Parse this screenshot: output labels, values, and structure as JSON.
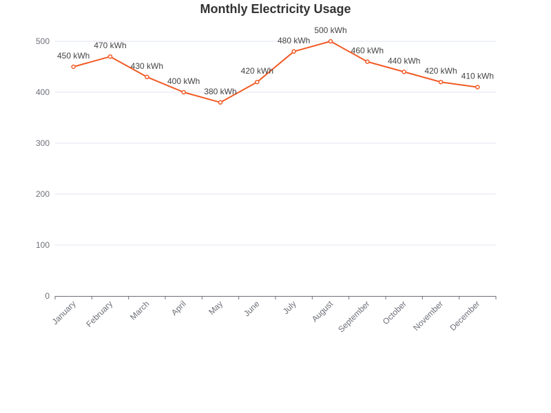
{
  "chart_data": {
    "type": "line",
    "title": "Monthly Electricity Usage",
    "xlabel": "",
    "ylabel": "",
    "categories": [
      "January",
      "February",
      "March",
      "April",
      "May",
      "June",
      "July",
      "August",
      "September",
      "October",
      "November",
      "December"
    ],
    "series": [
      {
        "values": [
          450,
          470,
          430,
          400,
          380,
          420,
          480,
          500,
          460,
          440,
          420,
          410
        ],
        "color": "#f15a24"
      }
    ],
    "value_label_suffix": " kWh",
    "ylim": [
      0,
      500
    ],
    "yticks": [
      0,
      100,
      200,
      300,
      400,
      500
    ],
    "grid": true,
    "legend": "none",
    "x_tick_rotation": "45deg"
  }
}
